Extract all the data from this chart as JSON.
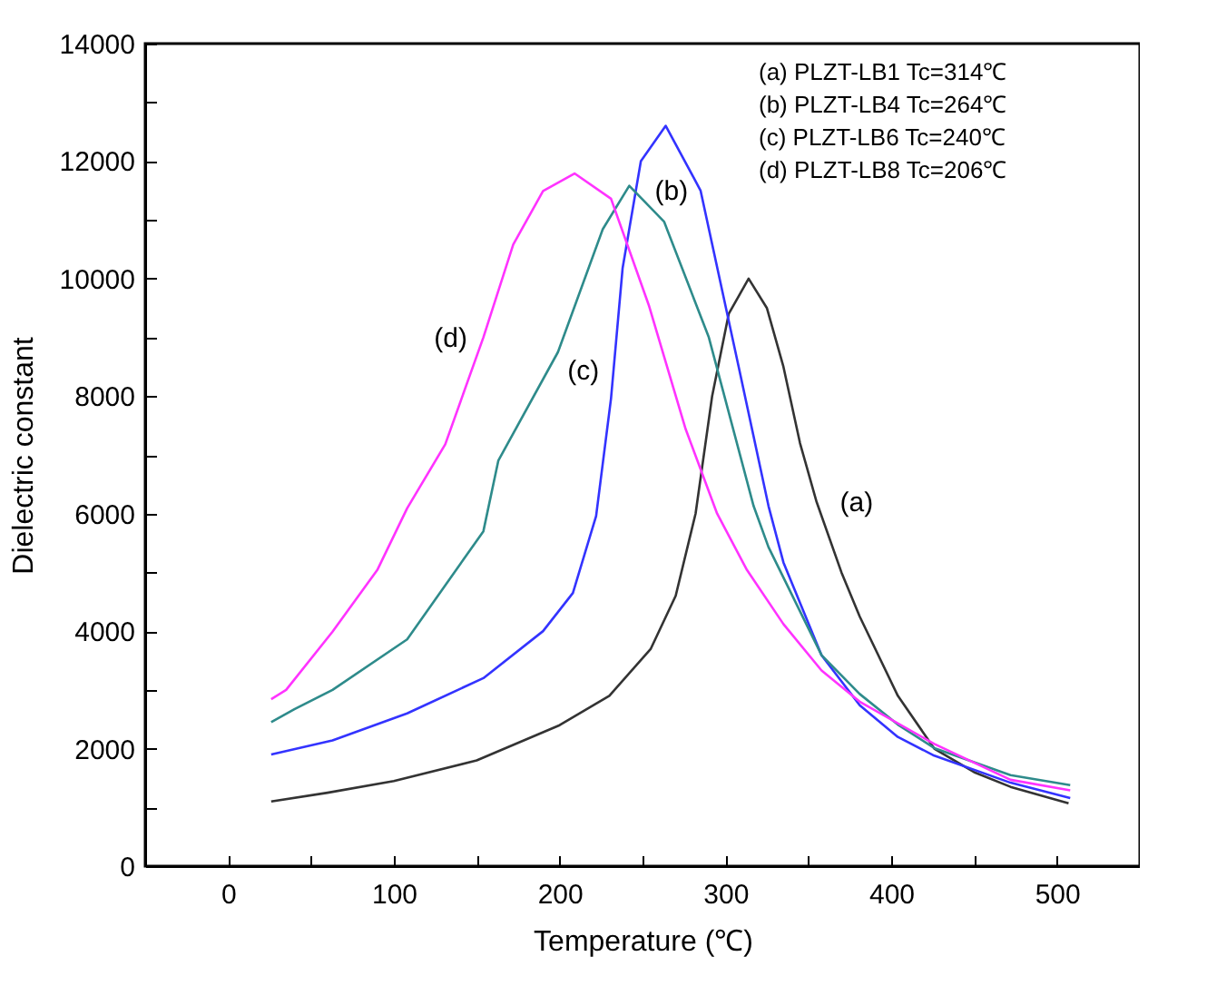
{
  "chart_data": {
    "type": "line",
    "xlabel": "Temperature (℃)",
    "ylabel": "Dielectric constant",
    "xlim": [
      -50,
      550
    ],
    "ylim": [
      0,
      14000
    ],
    "xticks": [
      {
        "value": -50,
        "label": null
      },
      0,
      {
        "value": 50,
        "label": null
      },
      100,
      {
        "value": 150,
        "label": null
      },
      200,
      {
        "value": 250,
        "label": null
      },
      300,
      {
        "value": 350,
        "label": null
      },
      400,
      {
        "value": 450,
        "label": null
      },
      500
    ],
    "yticks": [
      0,
      {
        "value": 1000,
        "label": null
      },
      2000,
      {
        "value": 3000,
        "label": null
      },
      4000,
      {
        "value": 5000,
        "label": null
      },
      6000,
      {
        "value": 7000,
        "label": null
      },
      8000,
      {
        "value": 9000,
        "label": null
      },
      10000,
      {
        "value": 11000,
        "label": null
      },
      12000,
      {
        "value": 13000,
        "label": null
      },
      14000
    ],
    "grid": false,
    "marker": "none",
    "line_style": "solid",
    "series": [
      {
        "color": "#333333",
        "x": [
          26,
          60,
          100,
          150,
          200,
          230,
          255,
          270,
          282,
          292,
          302,
          314,
          325,
          335,
          345,
          355,
          370,
          381,
          404,
          426,
          450,
          472,
          507
        ],
        "values": [
          1100,
          1250,
          1450,
          1800,
          2400,
          2900,
          3700,
          4600,
          6000,
          8000,
          9400,
          10000,
          9500,
          8500,
          7200,
          6200,
          5000,
          4250,
          2900,
          2000,
          1600,
          1350,
          1070
        ]
      },
      {
        "color": "#3333ff",
        "x": [
          26,
          63,
          108,
          154,
          190,
          208,
          222,
          231,
          238,
          249,
          264,
          285,
          308,
          326,
          335,
          358,
          381,
          404,
          426,
          472,
          508
        ],
        "values": [
          1900,
          2140,
          2600,
          3200,
          4000,
          4650,
          5960,
          7960,
          10180,
          12000,
          12600,
          11500,
          8500,
          6130,
          5170,
          3590,
          2740,
          2200,
          1880,
          1420,
          1160
        ]
      },
      {
        "color": "#2e8b8b",
        "x": [
          26,
          40,
          63,
          108,
          154,
          163,
          199,
          226,
          242,
          263,
          290,
          317,
          326,
          358,
          381,
          404,
          426,
          472,
          508
        ],
        "values": [
          2450,
          2670,
          3000,
          3860,
          5700,
          6900,
          8750,
          10840,
          11580,
          10970,
          9000,
          6130,
          5430,
          3590,
          2930,
          2410,
          2010,
          1550,
          1380
        ]
      },
      {
        "color": "#ff33ff",
        "x": [
          26,
          35,
          63,
          90,
          108,
          131,
          154,
          172,
          190,
          209,
          231,
          254,
          276,
          295,
          313,
          335,
          358,
          381,
          426,
          472,
          508
        ],
        "values": [
          2840,
          3000,
          3990,
          5040,
          6090,
          7180,
          9000,
          10580,
          11490,
          11790,
          11360,
          9530,
          7440,
          6000,
          5040,
          4120,
          3330,
          2800,
          2080,
          1470,
          1290
        ]
      }
    ],
    "annotations": [
      {
        "text": "(a)",
        "x": 355,
        "y": 6200
      },
      {
        "text": "(b)",
        "x": 285,
        "y": 11500
      },
      {
        "text": "(c)",
        "x": 199,
        "y": 8750
      },
      {
        "text": "(d)",
        "x": 154,
        "y": 9000
      },
      "(a) PLZT-LB1 Tc=314℃",
      "(b) PLZT-LB4 Tc=264℃",
      "(c) PLZT-LB6 Tc=240℃",
      "(d) PLZT-LB8 Tc=206℃"
    ]
  }
}
